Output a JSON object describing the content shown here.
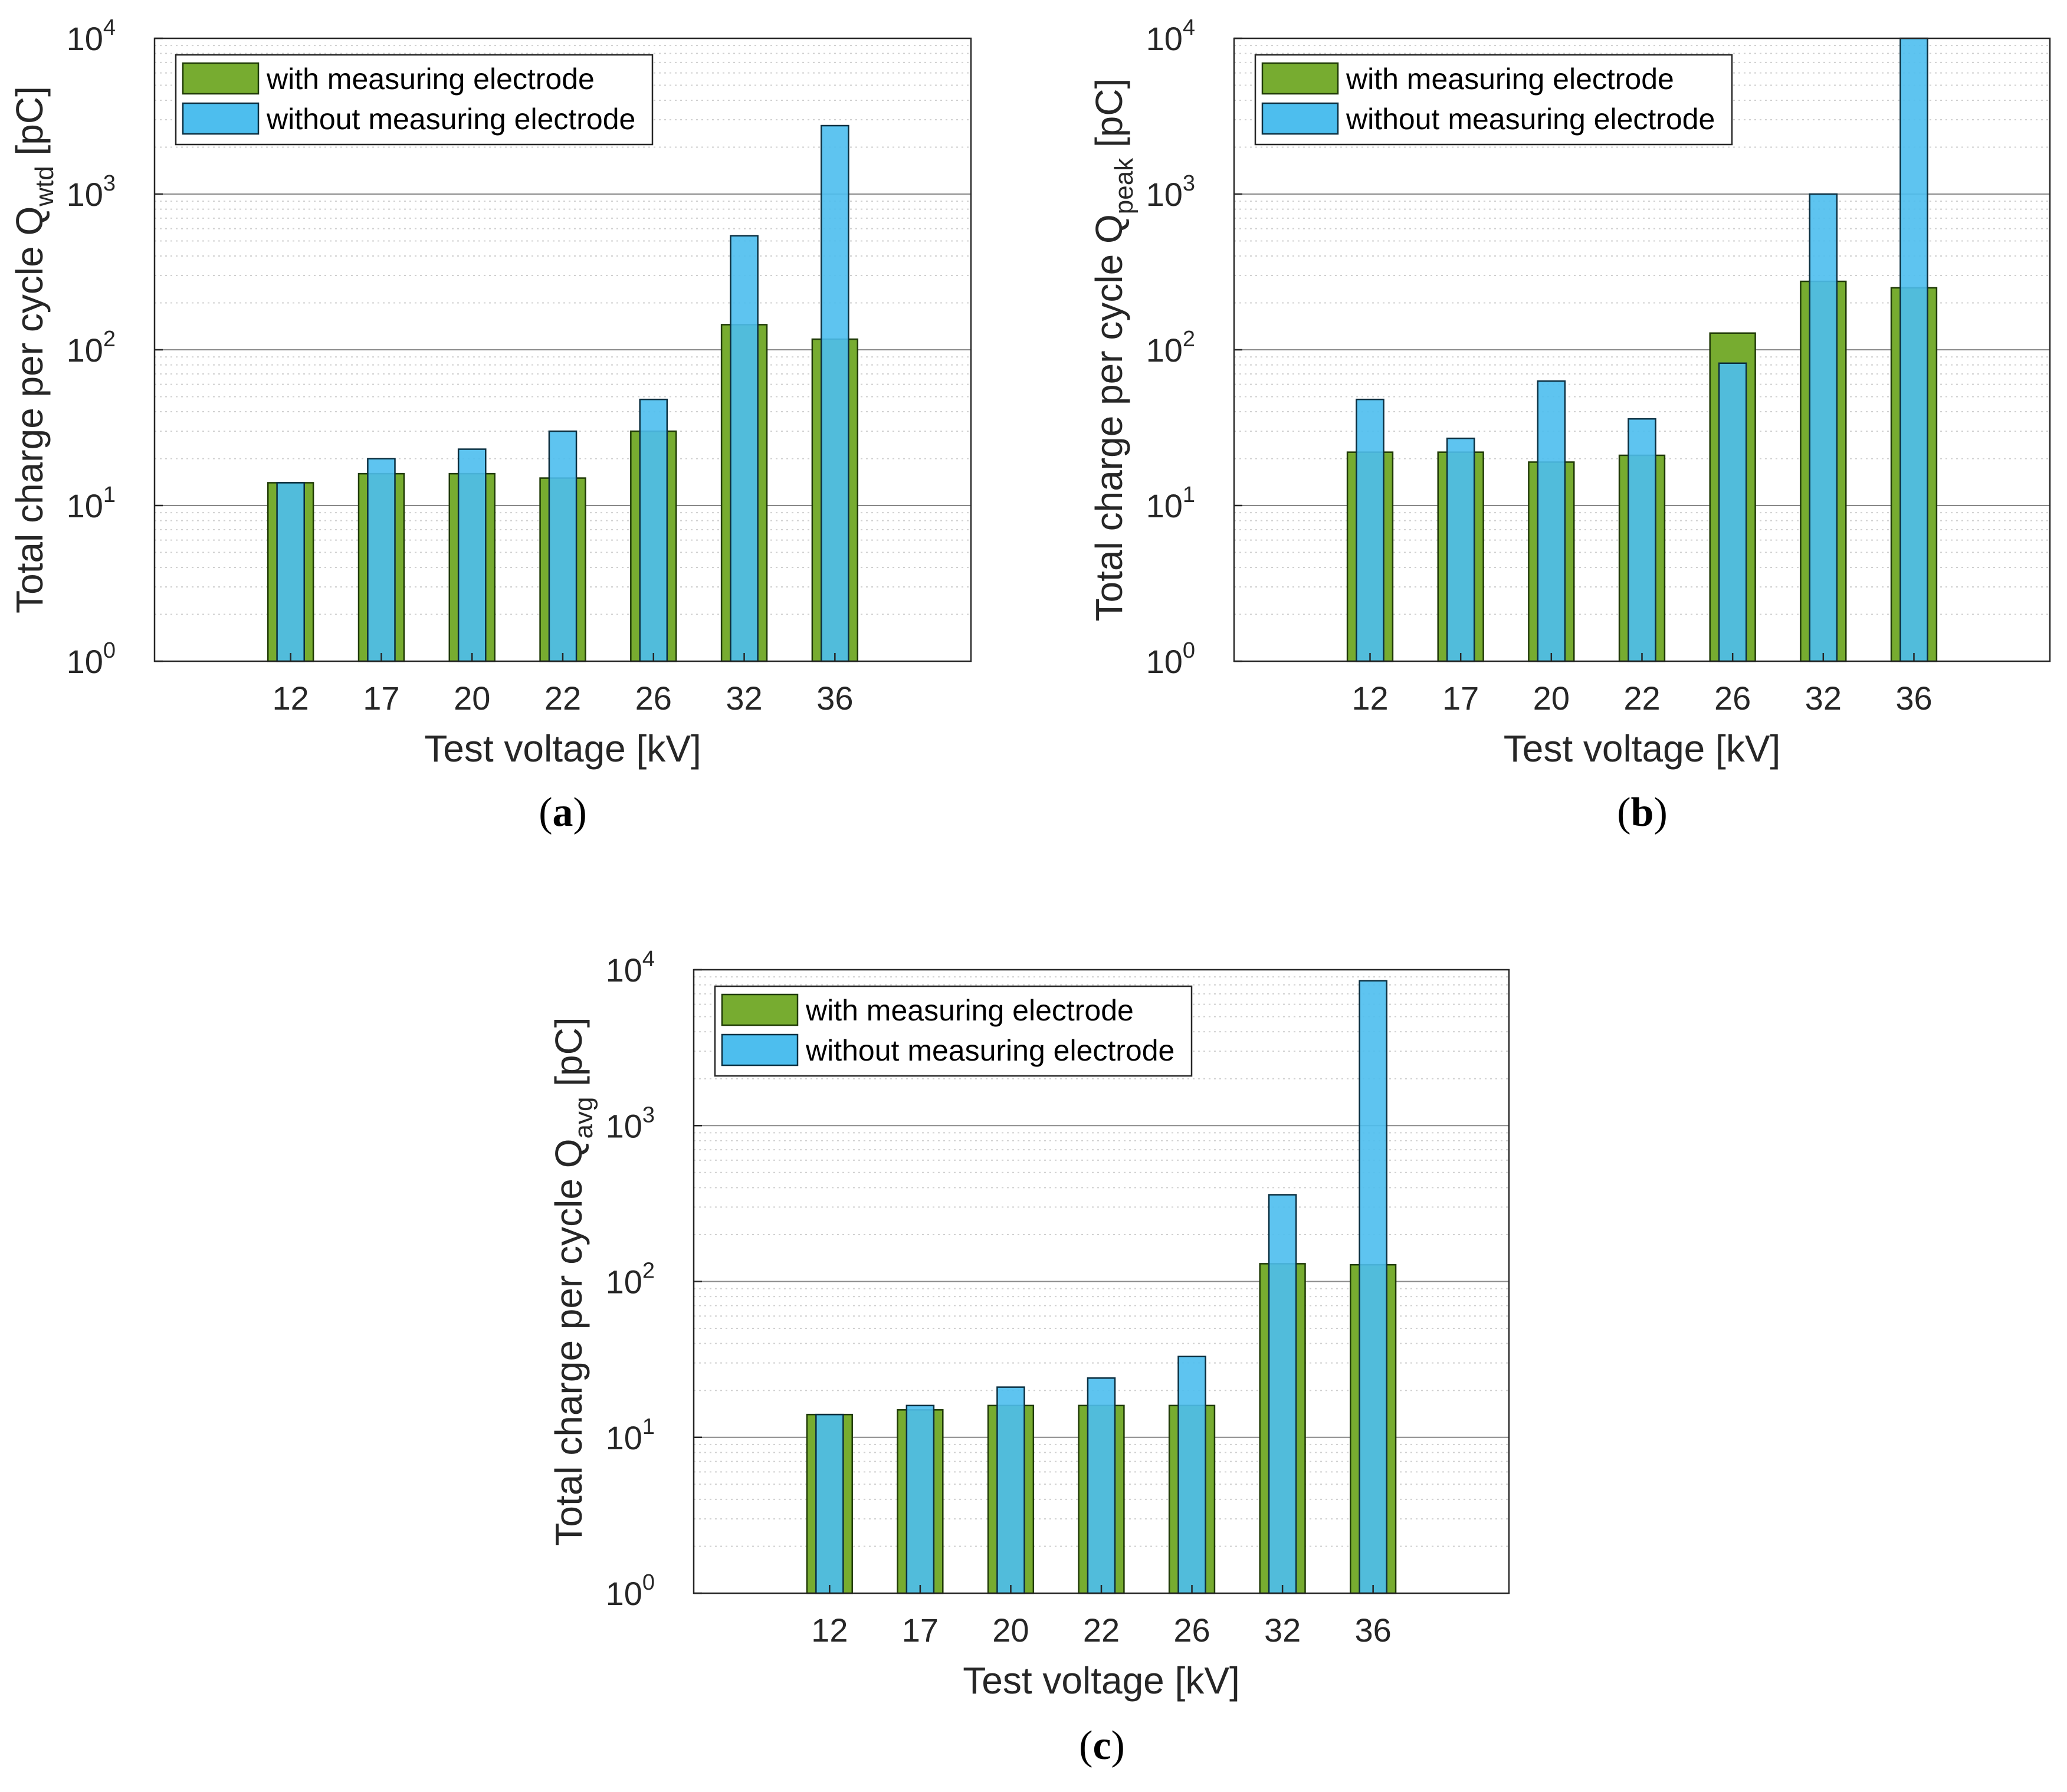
{
  "colors": {
    "with": "#77AC30",
    "with_edge": "#1f3a06",
    "without": "#4DBEEE",
    "without_edge": "#0b2f40",
    "grid_major": "#8a8a8a",
    "grid_minor": "#d0d0d0",
    "axis": "#262626"
  },
  "chart_data": [
    {
      "type": "bar",
      "panel": "(a)",
      "panel_letter": "a",
      "yscale": "log",
      "ylim": [
        1,
        10000
      ],
      "yticks": [
        {
          "base": "10",
          "exp": "0"
        },
        {
          "base": "10",
          "exp": "1"
        },
        {
          "base": "10",
          "exp": "2"
        },
        {
          "base": "10",
          "exp": "3"
        },
        {
          "base": "10",
          "exp": "4"
        }
      ],
      "categories": [
        "12",
        "17",
        "20",
        "22",
        "26",
        "32",
        "36"
      ],
      "xlabel": "Test voltage [kV]",
      "ylabel_main": "Total charge per cycle Q",
      "ylabel_sub": "wtd",
      "ylabel_unit": " [pC]",
      "legend_position": "top-left",
      "series": [
        {
          "name": "with measuring electrode",
          "values": [
            14,
            16,
            16,
            15,
            30,
            145,
            117
          ]
        },
        {
          "name": "without measuring electrode",
          "values": [
            14,
            20,
            23,
            30,
            48,
            540,
            2750
          ]
        }
      ]
    },
    {
      "type": "bar",
      "panel": "(b)",
      "panel_letter": "b",
      "yscale": "log",
      "ylim": [
        1,
        10000
      ],
      "yticks": [
        {
          "base": "10",
          "exp": "0"
        },
        {
          "base": "10",
          "exp": "1"
        },
        {
          "base": "10",
          "exp": "2"
        },
        {
          "base": "10",
          "exp": "3"
        },
        {
          "base": "10",
          "exp": "4"
        }
      ],
      "categories": [
        "12",
        "17",
        "20",
        "22",
        "26",
        "32",
        "36"
      ],
      "xlabel": "Test voltage [kV]",
      "ylabel_main": "Total charge per cycle Q",
      "ylabel_sub": "peak",
      "ylabel_unit": " [pC]",
      "legend_position": "top-left",
      "series": [
        {
          "name": "with measuring electrode",
          "values": [
            22,
            22,
            19,
            21,
            128,
            275,
            250
          ]
        },
        {
          "name": "without measuring electrode",
          "values": [
            48,
            27,
            63,
            36,
            82,
            1000,
            10000
          ]
        }
      ]
    },
    {
      "type": "bar",
      "panel": "(c)",
      "panel_letter": "c",
      "yscale": "log",
      "ylim": [
        1,
        10000
      ],
      "yticks": [
        {
          "base": "10",
          "exp": "0"
        },
        {
          "base": "10",
          "exp": "1"
        },
        {
          "base": "10",
          "exp": "2"
        },
        {
          "base": "10",
          "exp": "3"
        },
        {
          "base": "10",
          "exp": "4"
        }
      ],
      "categories": [
        "12",
        "17",
        "20",
        "22",
        "26",
        "32",
        "36"
      ],
      "xlabel": "Test voltage [kV]",
      "ylabel_main": "Total charge per cycle Q",
      "ylabel_sub": "avg",
      "ylabel_unit": " [pC]",
      "legend_position": "top-left",
      "series": [
        {
          "name": "with measuring electrode",
          "values": [
            14,
            15,
            16,
            16,
            16,
            130,
            128
          ]
        },
        {
          "name": "without measuring electrode",
          "values": [
            14,
            16,
            21,
            24,
            33,
            360,
            8500
          ]
        }
      ]
    }
  ]
}
